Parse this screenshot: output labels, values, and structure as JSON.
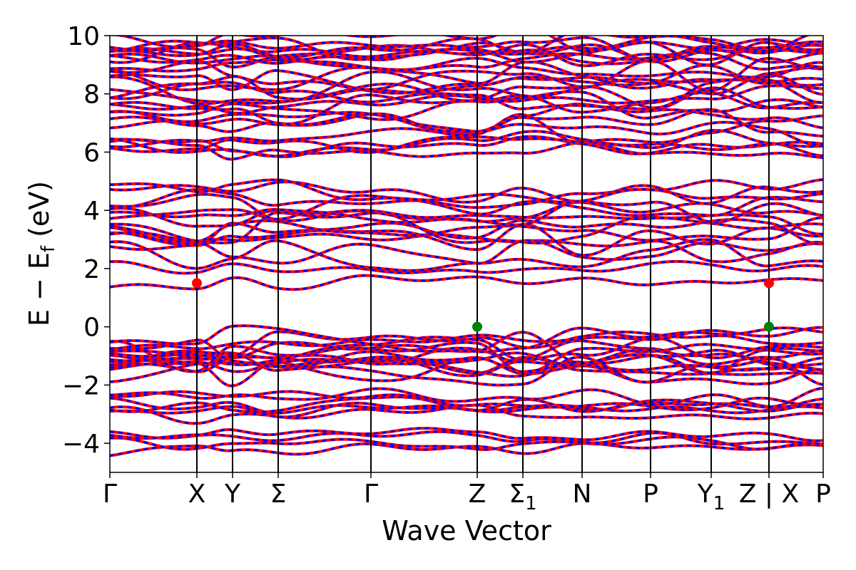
{
  "chart_data": {
    "type": "line",
    "xlabel": "Wave Vector",
    "ylabel": "E − E",
    "ylabel_sub": "f",
    "ylabel_unit": " (eV)",
    "ylim": [
      -5,
      10
    ],
    "yticks": [
      {
        "value": -4,
        "label": "−4"
      },
      {
        "value": -2,
        "label": "−2"
      },
      {
        "value": 0,
        "label": "0"
      },
      {
        "value": 2,
        "label": "2"
      },
      {
        "value": 4,
        "label": "4"
      },
      {
        "value": 6,
        "label": "6"
      },
      {
        "value": 8,
        "label": "8"
      },
      {
        "value": 10,
        "label": "10"
      }
    ],
    "kpoints": [
      {
        "label": "Γ",
        "sub": "",
        "k": 0.0
      },
      {
        "label": "X",
        "sub": "",
        "k": 0.122
      },
      {
        "label": "Y",
        "sub": "",
        "k": 0.172
      },
      {
        "label": "Σ",
        "sub": "",
        "k": 0.236
      },
      {
        "label": "Γ",
        "sub": "",
        "k": 0.366
      },
      {
        "label": "Z",
        "sub": "",
        "k": 0.515
      },
      {
        "label": "Σ",
        "sub": "1",
        "k": 0.579
      },
      {
        "label": "N",
        "sub": "",
        "k": 0.662
      },
      {
        "label": "P",
        "sub": "",
        "k": 0.758
      },
      {
        "label": "Y",
        "sub": "1",
        "k": 0.843
      },
      {
        "label": "Z | X",
        "sub": "",
        "k": 0.924
      },
      {
        "label": "P",
        "sub": "",
        "k": 1.0
      }
    ],
    "grid": false,
    "series": [
      {
        "color": "#ff0000",
        "style": "solid"
      },
      {
        "color": "#0000ff",
        "style": "dashed"
      }
    ],
    "band_groups": [
      {
        "base": -4.2,
        "count": 4,
        "spread": 0.5
      },
      {
        "base": -3.0,
        "count": 6,
        "spread": 0.6
      },
      {
        "base": -1.6,
        "count": 14,
        "spread": 1.1
      },
      {
        "base": 1.5,
        "count": 2,
        "spread": 0.5
      },
      {
        "base": 2.5,
        "count": 8,
        "spread": 1.2
      },
      {
        "base": 3.8,
        "count": 6,
        "spread": 0.9
      },
      {
        "base": 6.0,
        "count": 8,
        "spread": 1.1
      },
      {
        "base": 7.5,
        "count": 10,
        "spread": 1.2
      },
      {
        "base": 9.0,
        "count": 10,
        "spread": 0.9
      }
    ],
    "markers": [
      {
        "name": "cbm-marker",
        "k": 0.122,
        "E": 1.5,
        "color": "#ff0000"
      },
      {
        "name": "cbm-marker",
        "k": 0.924,
        "E": 1.5,
        "color": "#ff0000"
      },
      {
        "name": "vbm-marker",
        "k": 0.515,
        "E": 0.0,
        "color": "#008000"
      },
      {
        "name": "vbm-marker",
        "k": 0.924,
        "E": 0.0,
        "color": "#008000"
      }
    ]
  }
}
